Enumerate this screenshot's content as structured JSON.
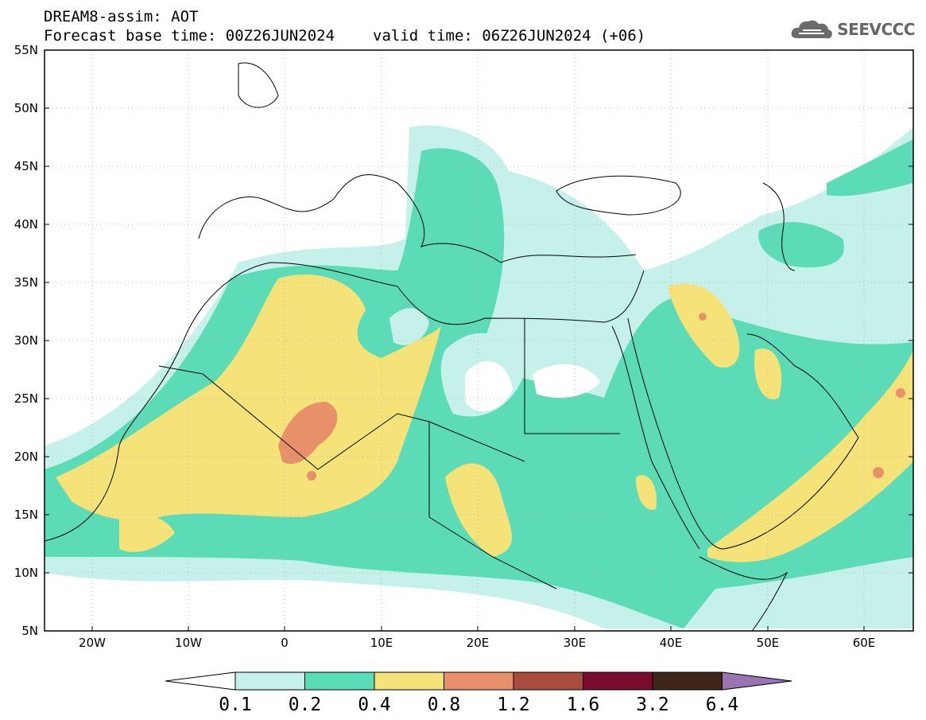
{
  "header": {
    "title_line1": "DREAM8-assim: AOT",
    "base_label": "Forecast base time: 00Z26JUN2024",
    "valid_label": "valid time: 06Z26JUN2024 (+06)",
    "logo_text": "SEEVCCC",
    "logo_icon": "cloud-icon"
  },
  "map": {
    "variable": "AOT",
    "extent": {
      "lon": [
        -25,
        65
      ],
      "lat": [
        5,
        55
      ]
    },
    "lat_ticks": [
      "55N",
      "50N",
      "45N",
      "40N",
      "35N",
      "30N",
      "25N",
      "20N",
      "15N",
      "10N",
      "5N"
    ],
    "lon_ticks": [
      "20W",
      "10W",
      "0",
      "10E",
      "20E",
      "30E",
      "40E",
      "50E",
      "60E"
    ],
    "grid": "dotted"
  },
  "colorbar": {
    "labels": [
      "0.1",
      "0.2",
      "0.4",
      "0.8",
      "1.2",
      "1.6",
      "3.2",
      "6.4"
    ],
    "colors": [
      "#c6f1ea",
      "#5bdcb6",
      "#f5e37a",
      "#e8906a",
      "#a84c3e",
      "#7a0c2e",
      "#3e2718",
      "#9b74b4"
    ]
  }
}
